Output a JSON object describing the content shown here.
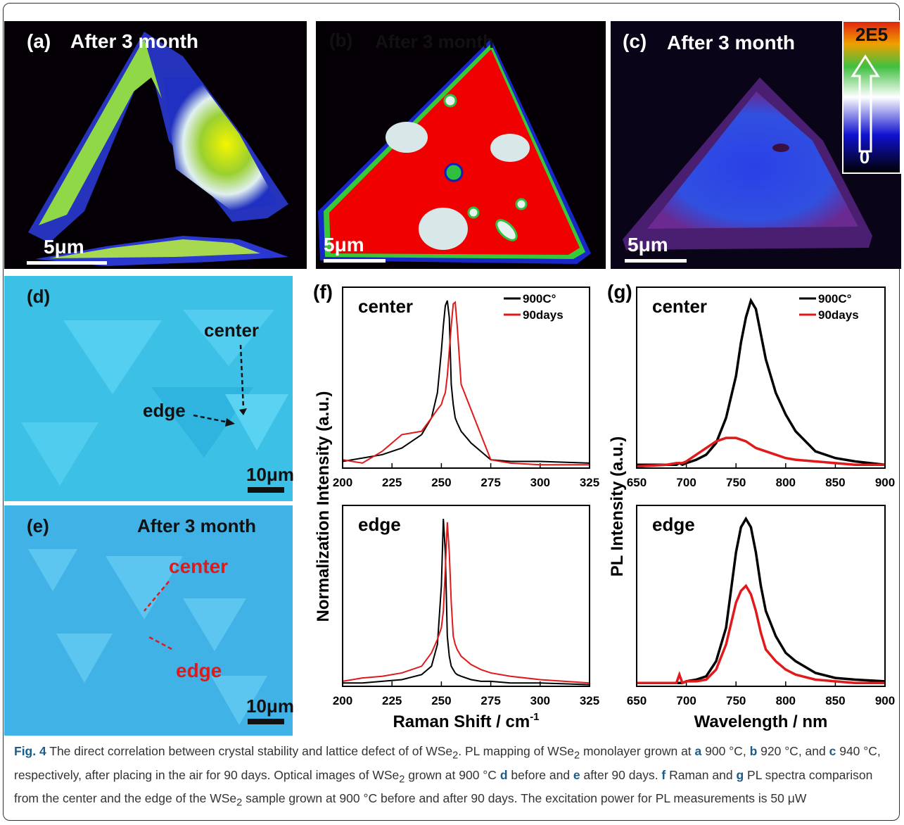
{
  "panels": {
    "a": {
      "label": "(a)",
      "title": "After 3 month",
      "scalebar": "5μm"
    },
    "b": {
      "label": "(b)",
      "title": "After 3 month",
      "scalebar": "5μm"
    },
    "c": {
      "label": "(c)",
      "title": "After 3 month",
      "scalebar": "5μm",
      "colorbar_max": "2E5",
      "colorbar_min": "0"
    },
    "d": {
      "label": "(d)",
      "center": "center",
      "edge": "edge",
      "scalebar": "10μm"
    },
    "e": {
      "label": "(e)",
      "title": "After 3 month",
      "center": "center",
      "edge": "edge",
      "scalebar": "10μm"
    }
  },
  "chart_data": [
    {
      "type": "line",
      "panel": "(f)",
      "annotation": "center",
      "ylabel": "Normalization Intensity (a.u.)",
      "x": [
        200,
        210,
        220,
        230,
        240,
        245,
        248,
        250,
        251,
        252,
        253,
        254,
        255,
        256,
        257,
        258,
        260,
        265,
        270,
        275,
        285,
        300,
        325
      ],
      "xlim": [
        200,
        325
      ],
      "xticks": [
        200,
        225,
        250,
        275,
        300,
        325
      ],
      "ylim": [
        0,
        1.08
      ],
      "series": [
        {
          "name": "900C°",
          "color": "#000000",
          "values": [
            0.04,
            0.06,
            0.08,
            0.12,
            0.2,
            0.3,
            0.45,
            0.7,
            0.85,
            0.97,
            1.0,
            0.9,
            0.5,
            0.38,
            0.3,
            0.27,
            0.22,
            0.15,
            0.1,
            0.05,
            0.04,
            0.04,
            0.03
          ]
        },
        {
          "name": "90days",
          "color": "#e0191b",
          "values": [
            0.05,
            0.03,
            0.1,
            0.2,
            0.22,
            0.3,
            0.35,
            0.38,
            0.42,
            0.45,
            0.55,
            0.7,
            0.85,
            0.98,
            0.99,
            0.85,
            0.5,
            0.35,
            0.2,
            0.05,
            0.03,
            0.02,
            0.02
          ]
        }
      ]
    },
    {
      "type": "line",
      "annotation": "edge",
      "xlabel": "Raman Shift / cm",
      "xlabel_sup": "-1",
      "x": [
        200,
        210,
        220,
        230,
        240,
        245,
        248,
        250,
        251,
        252,
        253,
        254,
        255,
        256,
        257,
        258,
        260,
        265,
        270,
        275,
        285,
        300,
        325
      ],
      "xlim": [
        200,
        325
      ],
      "xticks": [
        200,
        225,
        250,
        275,
        300,
        325
      ],
      "ylim": [
        0,
        1.08
      ],
      "series": [
        {
          "color": "#000000",
          "values": [
            0.02,
            0.02,
            0.03,
            0.04,
            0.07,
            0.12,
            0.25,
            0.6,
            1.0,
            0.8,
            0.3,
            0.18,
            0.12,
            0.1,
            0.08,
            0.07,
            0.06,
            0.04,
            0.03,
            0.03,
            0.02,
            0.02,
            0.01
          ]
        },
        {
          "color": "#e0191b",
          "values": [
            0.03,
            0.05,
            0.06,
            0.08,
            0.12,
            0.2,
            0.28,
            0.35,
            0.45,
            0.7,
            0.98,
            0.8,
            0.5,
            0.3,
            0.25,
            0.22,
            0.18,
            0.13,
            0.1,
            0.08,
            0.06,
            0.04,
            0.02
          ]
        }
      ]
    },
    {
      "type": "line",
      "panel": "(g)",
      "annotation": "center",
      "ylabel": "PL Intensity (a.u.)",
      "x": [
        650,
        680,
        690,
        693,
        696,
        700,
        710,
        720,
        730,
        740,
        750,
        755,
        760,
        765,
        770,
        775,
        780,
        790,
        800,
        810,
        830,
        850,
        870,
        900
      ],
      "xlim": [
        650,
        900
      ],
      "xticks": [
        650,
        700,
        750,
        800,
        850,
        900
      ],
      "ylim": [
        0,
        1.08
      ],
      "series": [
        {
          "name": "900C°",
          "color": "#000000",
          "values": [
            0.02,
            0.02,
            0.02,
            0.03,
            0.02,
            0.03,
            0.05,
            0.08,
            0.15,
            0.3,
            0.55,
            0.75,
            0.9,
            1.0,
            0.95,
            0.8,
            0.65,
            0.45,
            0.32,
            0.22,
            0.1,
            0.06,
            0.04,
            0.02
          ]
        },
        {
          "name": "90days",
          "color": "#e0191b",
          "values": [
            0.01,
            0.02,
            0.03,
            0.03,
            0.03,
            0.04,
            0.08,
            0.12,
            0.16,
            0.18,
            0.18,
            0.17,
            0.16,
            0.14,
            0.12,
            0.11,
            0.1,
            0.08,
            0.06,
            0.05,
            0.04,
            0.03,
            0.02,
            0.02
          ]
        }
      ]
    },
    {
      "type": "line",
      "annotation": "edge",
      "xlabel": "Wavelength / nm",
      "x": [
        650,
        680,
        690,
        693,
        696,
        700,
        710,
        720,
        730,
        740,
        750,
        755,
        760,
        765,
        770,
        775,
        780,
        790,
        800,
        810,
        830,
        850,
        870,
        900
      ],
      "xlim": [
        650,
        900
      ],
      "xticks": [
        650,
        700,
        750,
        800,
        850,
        900
      ],
      "ylim": [
        0,
        1.08
      ],
      "series": [
        {
          "color": "#000000",
          "values": [
            0.02,
            0.02,
            0.02,
            0.02,
            0.02,
            0.03,
            0.04,
            0.06,
            0.15,
            0.35,
            0.8,
            0.95,
            1.0,
            0.95,
            0.8,
            0.6,
            0.45,
            0.3,
            0.2,
            0.15,
            0.08,
            0.05,
            0.04,
            0.03
          ]
        },
        {
          "color": "#e0191b",
          "values": [
            0.02,
            0.02,
            0.02,
            0.07,
            0.02,
            0.03,
            0.03,
            0.04,
            0.1,
            0.25,
            0.5,
            0.57,
            0.6,
            0.55,
            0.45,
            0.32,
            0.22,
            0.15,
            0.1,
            0.07,
            0.04,
            0.03,
            0.02,
            0.02
          ]
        }
      ]
    }
  ],
  "caption": {
    "parts": [
      "Fig. 4",
      " The direct correlation between crystal stability and lattice defect of of WSe",
      "2",
      ". PL mapping of WSe",
      "2",
      " monolayer grown at ",
      "a",
      " 900 °C, ",
      "b",
      " 920 °C, and ",
      "c",
      " 940 °C, respectively, after placing in the air for 90 days. Optical images of WSe",
      "2",
      " grown at 900 °C ",
      "d",
      " before and ",
      "e",
      " after 90 days. ",
      "f",
      " Raman and ",
      "g",
      " PL spectra comparison from the center and the edge of the WSe",
      "2",
      " sample grown at 900 °C before and after 90 days. The excitation power for PL measurements is 50 μW"
    ]
  }
}
